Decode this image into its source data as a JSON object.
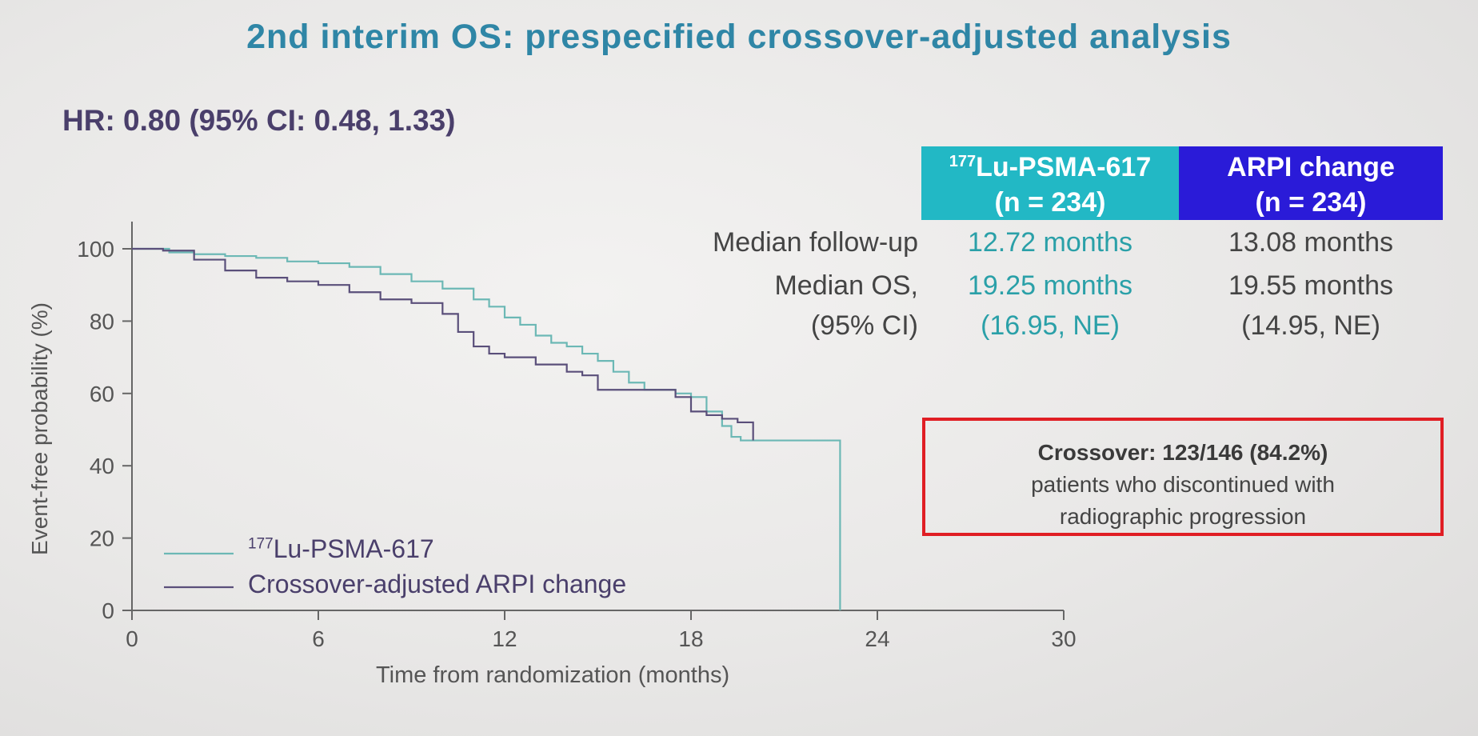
{
  "title": "2nd interim OS: prespecified crossover-adjusted analysis",
  "hr": "HR: 0.80 (95% CI: 0.48, 1.33)",
  "table": {
    "lu_sup": "177",
    "lu_name": "Lu-PSMA-617",
    "lu_n": "(n = 234)",
    "arpi_name": "ARPI change",
    "arpi_n": "(n = 234)",
    "rows": [
      {
        "label": "Median follow-up",
        "lu": "12.72 months",
        "arpi": "13.08 months"
      },
      {
        "label": "Median OS,",
        "lu": "19.25 months",
        "arpi": "19.55 months"
      },
      {
        "label": "(95% CI)",
        "lu": "(16.95, NE)",
        "arpi": "(14.95, NE)"
      }
    ]
  },
  "crossover": {
    "bold": "Crossover: 123/146 (84.2%)",
    "line2": "patients who discontinued with",
    "line3": "radiographic progression"
  },
  "colors": {
    "lu": "#6cb8b5",
    "arpi": "#5a4f7a",
    "title": "#2f86a6"
  },
  "chart_data": {
    "type": "line",
    "xlabel": "Time from randomization (months)",
    "ylabel": "Event-free probability (%)",
    "xlim": [
      0,
      30
    ],
    "ylim": [
      0,
      100
    ],
    "xticks": [
      0,
      6,
      12,
      18,
      24,
      30
    ],
    "yticks": [
      0,
      20,
      40,
      60,
      80,
      100
    ],
    "series": [
      {
        "name_sup": "177",
        "name": "Lu-PSMA-617",
        "color": "#6cb8b5",
        "x": [
          0,
          1.2,
          2,
          3,
          4,
          5,
          6,
          7,
          8,
          9,
          10,
          11,
          11.5,
          12,
          12.5,
          13,
          13.5,
          14,
          14.5,
          15,
          15.5,
          16,
          16.5,
          17,
          17.5,
          18,
          18.5,
          19,
          19.3,
          19.6,
          20,
          21,
          22,
          22.8,
          22.8
        ],
        "y": [
          100,
          99,
          98.5,
          98,
          97.5,
          96.5,
          96,
          95,
          93,
          91,
          89,
          86,
          84,
          81,
          79,
          76,
          74,
          73,
          71,
          69,
          66,
          63,
          61,
          61,
          60,
          59,
          55,
          51,
          48,
          47,
          47,
          47,
          47,
          47,
          0
        ]
      },
      {
        "name": "Crossover-adjusted ARPI change",
        "color": "#5a4f7a",
        "x": [
          0,
          1,
          2,
          3,
          4,
          5,
          6,
          7,
          8,
          9,
          10,
          10.5,
          11,
          11.5,
          12,
          13,
          14,
          14.5,
          15,
          16,
          17,
          17.5,
          18,
          18.5,
          19,
          19.5,
          20
        ],
        "y": [
          100,
          99.5,
          97,
          94,
          92,
          91,
          90,
          88,
          86,
          85,
          82,
          77,
          73,
          71,
          70,
          68,
          66,
          65,
          61,
          61,
          61,
          59,
          55,
          54,
          53,
          52,
          47
        ]
      }
    ]
  }
}
